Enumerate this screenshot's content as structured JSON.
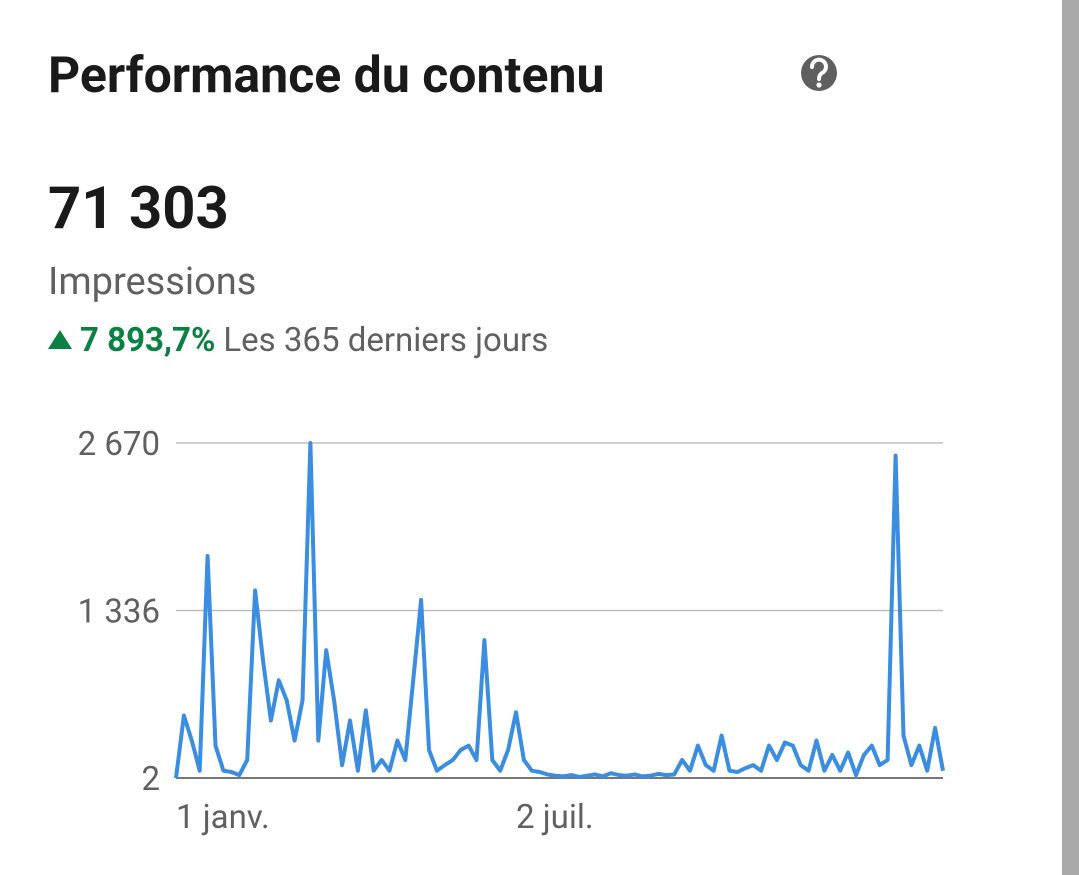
{
  "chart_data": {
    "type": "line",
    "title": "Performance du contenu",
    "total": "71 303",
    "metric": "Impressions",
    "change": "7 893,7%",
    "period": "Les 365 derniers jours",
    "color": "#3b8de0",
    "grid": true,
    "ylim": [
      2,
      2670
    ],
    "yticks": [
      2,
      {
        "value": 1336,
        "label": "1 336"
      },
      {
        "value": 2670,
        "label": "2 670"
      }
    ],
    "categories": [
      "1 janv.",
      null,
      null,
      null,
      null,
      null,
      null,
      null,
      null,
      null,
      null,
      null,
      null,
      null,
      null,
      null,
      null,
      null,
      null,
      null,
      null,
      null,
      null,
      null,
      null,
      null,
      null,
      null,
      null,
      null,
      null,
      null,
      null,
      null,
      null,
      null,
      null,
      null,
      null,
      null,
      null,
      null,
      null,
      "2 juil.",
      null,
      null,
      null,
      null,
      null,
      null,
      null,
      null,
      null,
      null,
      null,
      null,
      null,
      null,
      null,
      null,
      null,
      null,
      null,
      null,
      null,
      null,
      null,
      null,
      null,
      null,
      null,
      null,
      null,
      null,
      null,
      null,
      null,
      null,
      null,
      null,
      null,
      null,
      null,
      null,
      null,
      null,
      null,
      null,
      null,
      null,
      null,
      null,
      null,
      null,
      null,
      null,
      null,
      null
    ],
    "series": [
      {
        "name": "Impressions",
        "values": [
          2,
          500,
          300,
          60,
          1770,
          260,
          60,
          50,
          25,
          145,
          1495,
          940,
          460,
          780,
          620,
          300,
          620,
          2670,
          300,
          1020,
          620,
          105,
          460,
          60,
          540,
          60,
          145,
          60,
          300,
          145,
          780,
          1420,
          225,
          60,
          105,
          145,
          225,
          260,
          145,
          1100,
          145,
          60,
          225,
          525,
          145,
          60,
          50,
          30,
          20,
          15,
          25,
          10,
          20,
          30,
          15,
          40,
          25,
          20,
          30,
          15,
          20,
          35,
          25,
          30,
          145,
          60,
          260,
          105,
          60,
          340,
          60,
          50,
          80,
          105,
          60,
          260,
          145,
          285,
          260,
          105,
          60,
          300,
          60,
          185,
          60,
          205,
          25,
          185,
          260,
          105,
          145,
          2570,
          340,
          105,
          260,
          60,
          400,
          60
        ]
      }
    ]
  }
}
